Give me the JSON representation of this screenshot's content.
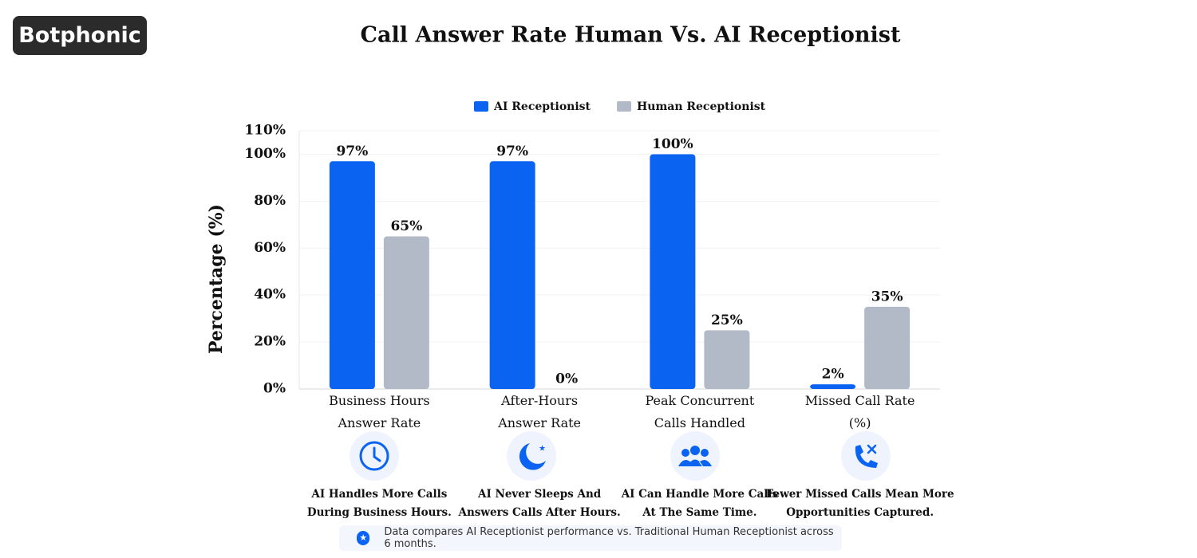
{
  "brand": "Botphonic",
  "chart_data": {
    "type": "bar",
    "title": "Call Answer Rate Human Vs. AI Receptionist",
    "ylabel": "Percentage (%)",
    "categories": [
      "Business Hours\nAnswer Rate",
      "After-Hours\nAnswer Rate",
      "Peak Concurrent\nCalls Handled",
      "Missed Call Rate\n(%)"
    ],
    "series": [
      {
        "name": "AI Receptionist",
        "color": "#0b63f2",
        "values": [
          97,
          97,
          100,
          2
        ],
        "value_labels": [
          "97%",
          "97%",
          "100%",
          "2%"
        ]
      },
      {
        "name": "Human Receptionist",
        "color": "#b3bac7",
        "values": [
          65,
          0,
          25,
          35
        ],
        "value_labels": [
          "65%",
          "0%",
          "25%",
          "35%"
        ]
      }
    ],
    "ylim": [
      0,
      110
    ],
    "yticks": [
      {
        "value": 0,
        "label": "0%"
      },
      {
        "value": 20,
        "label": "20%"
      },
      {
        "value": 40,
        "label": "40%"
      },
      {
        "value": 60,
        "label": "60%"
      },
      {
        "value": 80,
        "label": "80%"
      },
      {
        "value": 100,
        "label": "100%"
      },
      {
        "value": 110,
        "label": "110%"
      }
    ],
    "grid": true,
    "legend": "top"
  },
  "features": [
    "AI Handles More Calls\nDuring Business Hours.",
    "AI Never Sleeps And\nAnswers Calls After Hours.",
    "AI Can Handle More Calls\nAt The Same Time.",
    "Fewer Missed Calls Mean More\nOpportunities Captured."
  ],
  "footnote": "Data compares AI Receptionist performance vs. Traditional Human Receptionist across 6 months."
}
